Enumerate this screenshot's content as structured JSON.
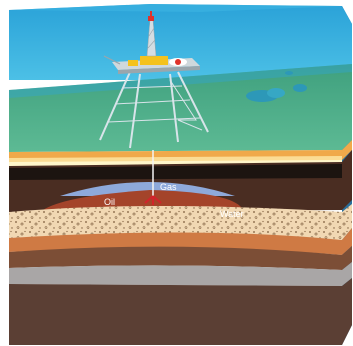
{
  "labels": {
    "gas": "Gas",
    "oil": "Oil",
    "water": "Water"
  },
  "colors": {
    "background": "#ffffff",
    "water_side": "#3fb9e6",
    "water_top": "#2fa6da",
    "seabed": "#4fb08c",
    "sand_orange": "#f0a94a",
    "rock_dark": "#4a2d22",
    "rock_black": "#1c1410",
    "gas_pocket": "#8ea9da",
    "oil_pocket": "#a4442a",
    "water_pocket": "#8fd0ea",
    "pebble_layer": "#f1d8b3",
    "orange_layer": "#cf7a44",
    "brown_layer": "#7c4e36",
    "grey_layer": "#a9a6a6",
    "bottom_layer": "#5b3f34"
  },
  "icons": [
    "oil-platform-icon",
    "drill-bit-icon",
    "seabed-rock-icon"
  ]
}
